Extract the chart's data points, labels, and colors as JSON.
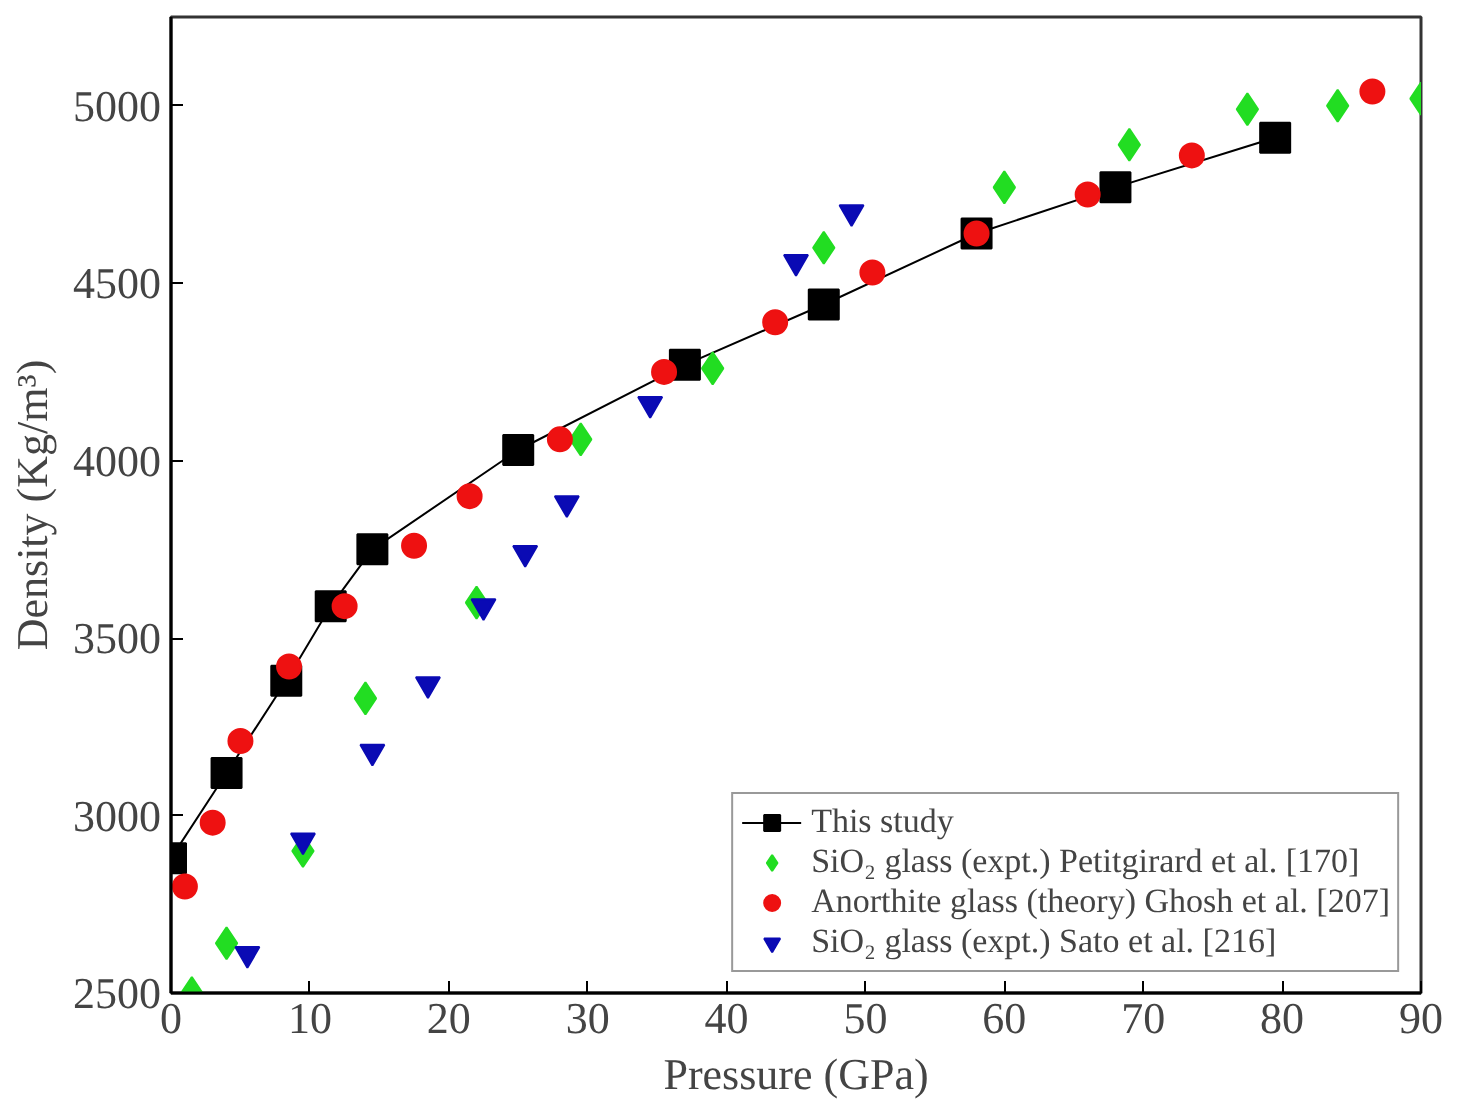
{
  "chart_data": {
    "type": "scatter",
    "xlabel": "Pressure (GPa)",
    "ylabel": "Density (Kg/m³)",
    "xlim": [
      0,
      90
    ],
    "ylim": [
      2500,
      5250
    ],
    "xticks": [
      0,
      10,
      20,
      30,
      40,
      50,
      60,
      70,
      80,
      90
    ],
    "yticks": [
      2500,
      3000,
      3500,
      4000,
      4500,
      5000
    ],
    "grid": false,
    "legend": "bottom right",
    "series": [
      {
        "name": "This study",
        "type": "line",
        "marker": "square",
        "color": "#000000",
        "x": [
          0,
          4,
          8.3,
          11.5,
          14.5,
          25,
          37,
          47,
          58,
          68,
          79.5
        ],
        "values": [
          2880,
          3120,
          3380,
          3590,
          3750,
          4030,
          4270,
          4440,
          4640,
          4770,
          4910
        ]
      },
      {
        "name": "SiO₂ glass (expt.) Petitgirard et al. [170]",
        "marker": "diamond",
        "color": "#22dd22",
        "x": [
          1.5,
          4,
          9.5,
          14,
          22,
          29.5,
          39,
          47,
          60,
          69,
          77.5,
          84,
          90
        ],
        "values": [
          2500,
          2640,
          2900,
          3330,
          3600,
          4060,
          4260,
          4600,
          4770,
          4890,
          4990,
          5000,
          5020
        ]
      },
      {
        "name": "Anorthite glass (theory) Ghosh et al. [207]",
        "marker": "circle",
        "color": "#ee1111",
        "x": [
          1,
          3,
          5,
          8.5,
          12.5,
          17.5,
          21.5,
          28,
          35.5,
          43.5,
          50.5,
          58,
          66,
          73.5,
          86.5
        ],
        "values": [
          2800,
          2980,
          3210,
          3420,
          3590,
          3760,
          3900,
          4060,
          4250,
          4390,
          4530,
          4640,
          4750,
          4860,
          5040
        ]
      },
      {
        "name": "SiO₂ glass (expt.) Sato et al. [216]",
        "marker": "triangle",
        "color": "#0a0ab4",
        "x": [
          5.5,
          9.5,
          14.5,
          18.5,
          22.5,
          25.5,
          28.5,
          34.5,
          45,
          49
        ],
        "values": [
          2610,
          2930,
          3180,
          3370,
          3590,
          3740,
          3880,
          4160,
          4560,
          4700
        ]
      }
    ]
  }
}
